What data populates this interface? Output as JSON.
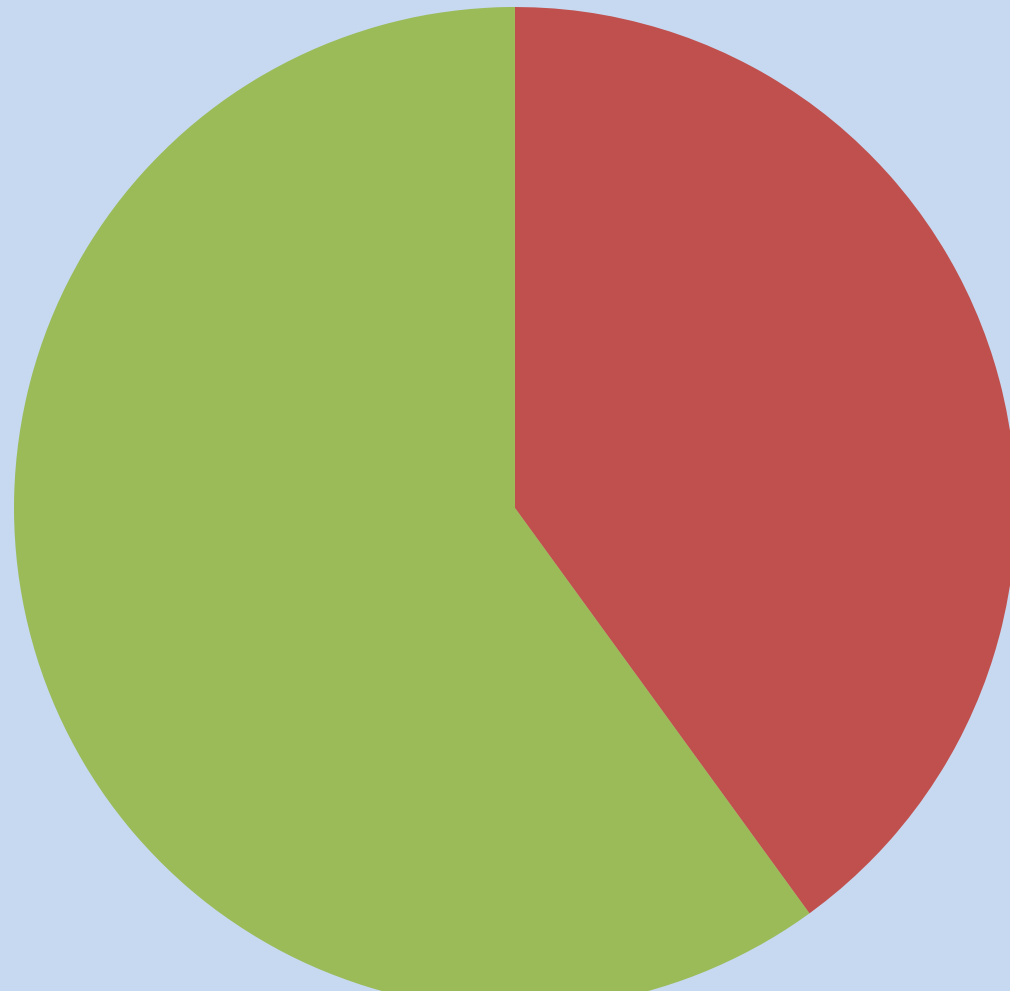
{
  "chart_data": {
    "type": "pie",
    "values": [
      40,
      60
    ],
    "colors": [
      "#c0504d",
      "#9bbb59"
    ],
    "start_angle": 0,
    "direction": "clockwise"
  }
}
